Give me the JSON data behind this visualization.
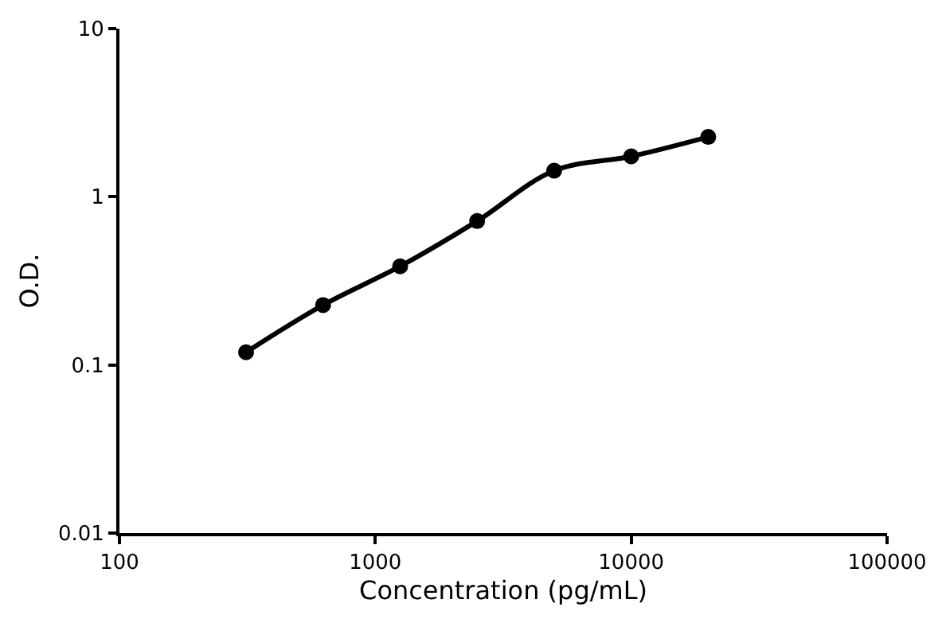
{
  "chart_data": {
    "type": "line",
    "xlabel": "Concentration (pg/mL)",
    "ylabel": "O.D.",
    "x": [
      312.5,
      625,
      1250,
      2500,
      5000,
      10000,
      20000
    ],
    "series": [
      {
        "color": "#000000",
        "values": [
          0.119,
          0.227,
          0.386,
          0.717,
          1.43,
          1.74,
          2.27
        ]
      }
    ],
    "log": "xy",
    "xlim": [
      100,
      100000
    ],
    "ylim": [
      0.01,
      10
    ],
    "xticks": [
      100,
      1000,
      10000,
      100000
    ],
    "yticks": [
      0.01,
      0.1,
      1,
      10
    ],
    "marker": "circle",
    "line_style": "solid"
  }
}
